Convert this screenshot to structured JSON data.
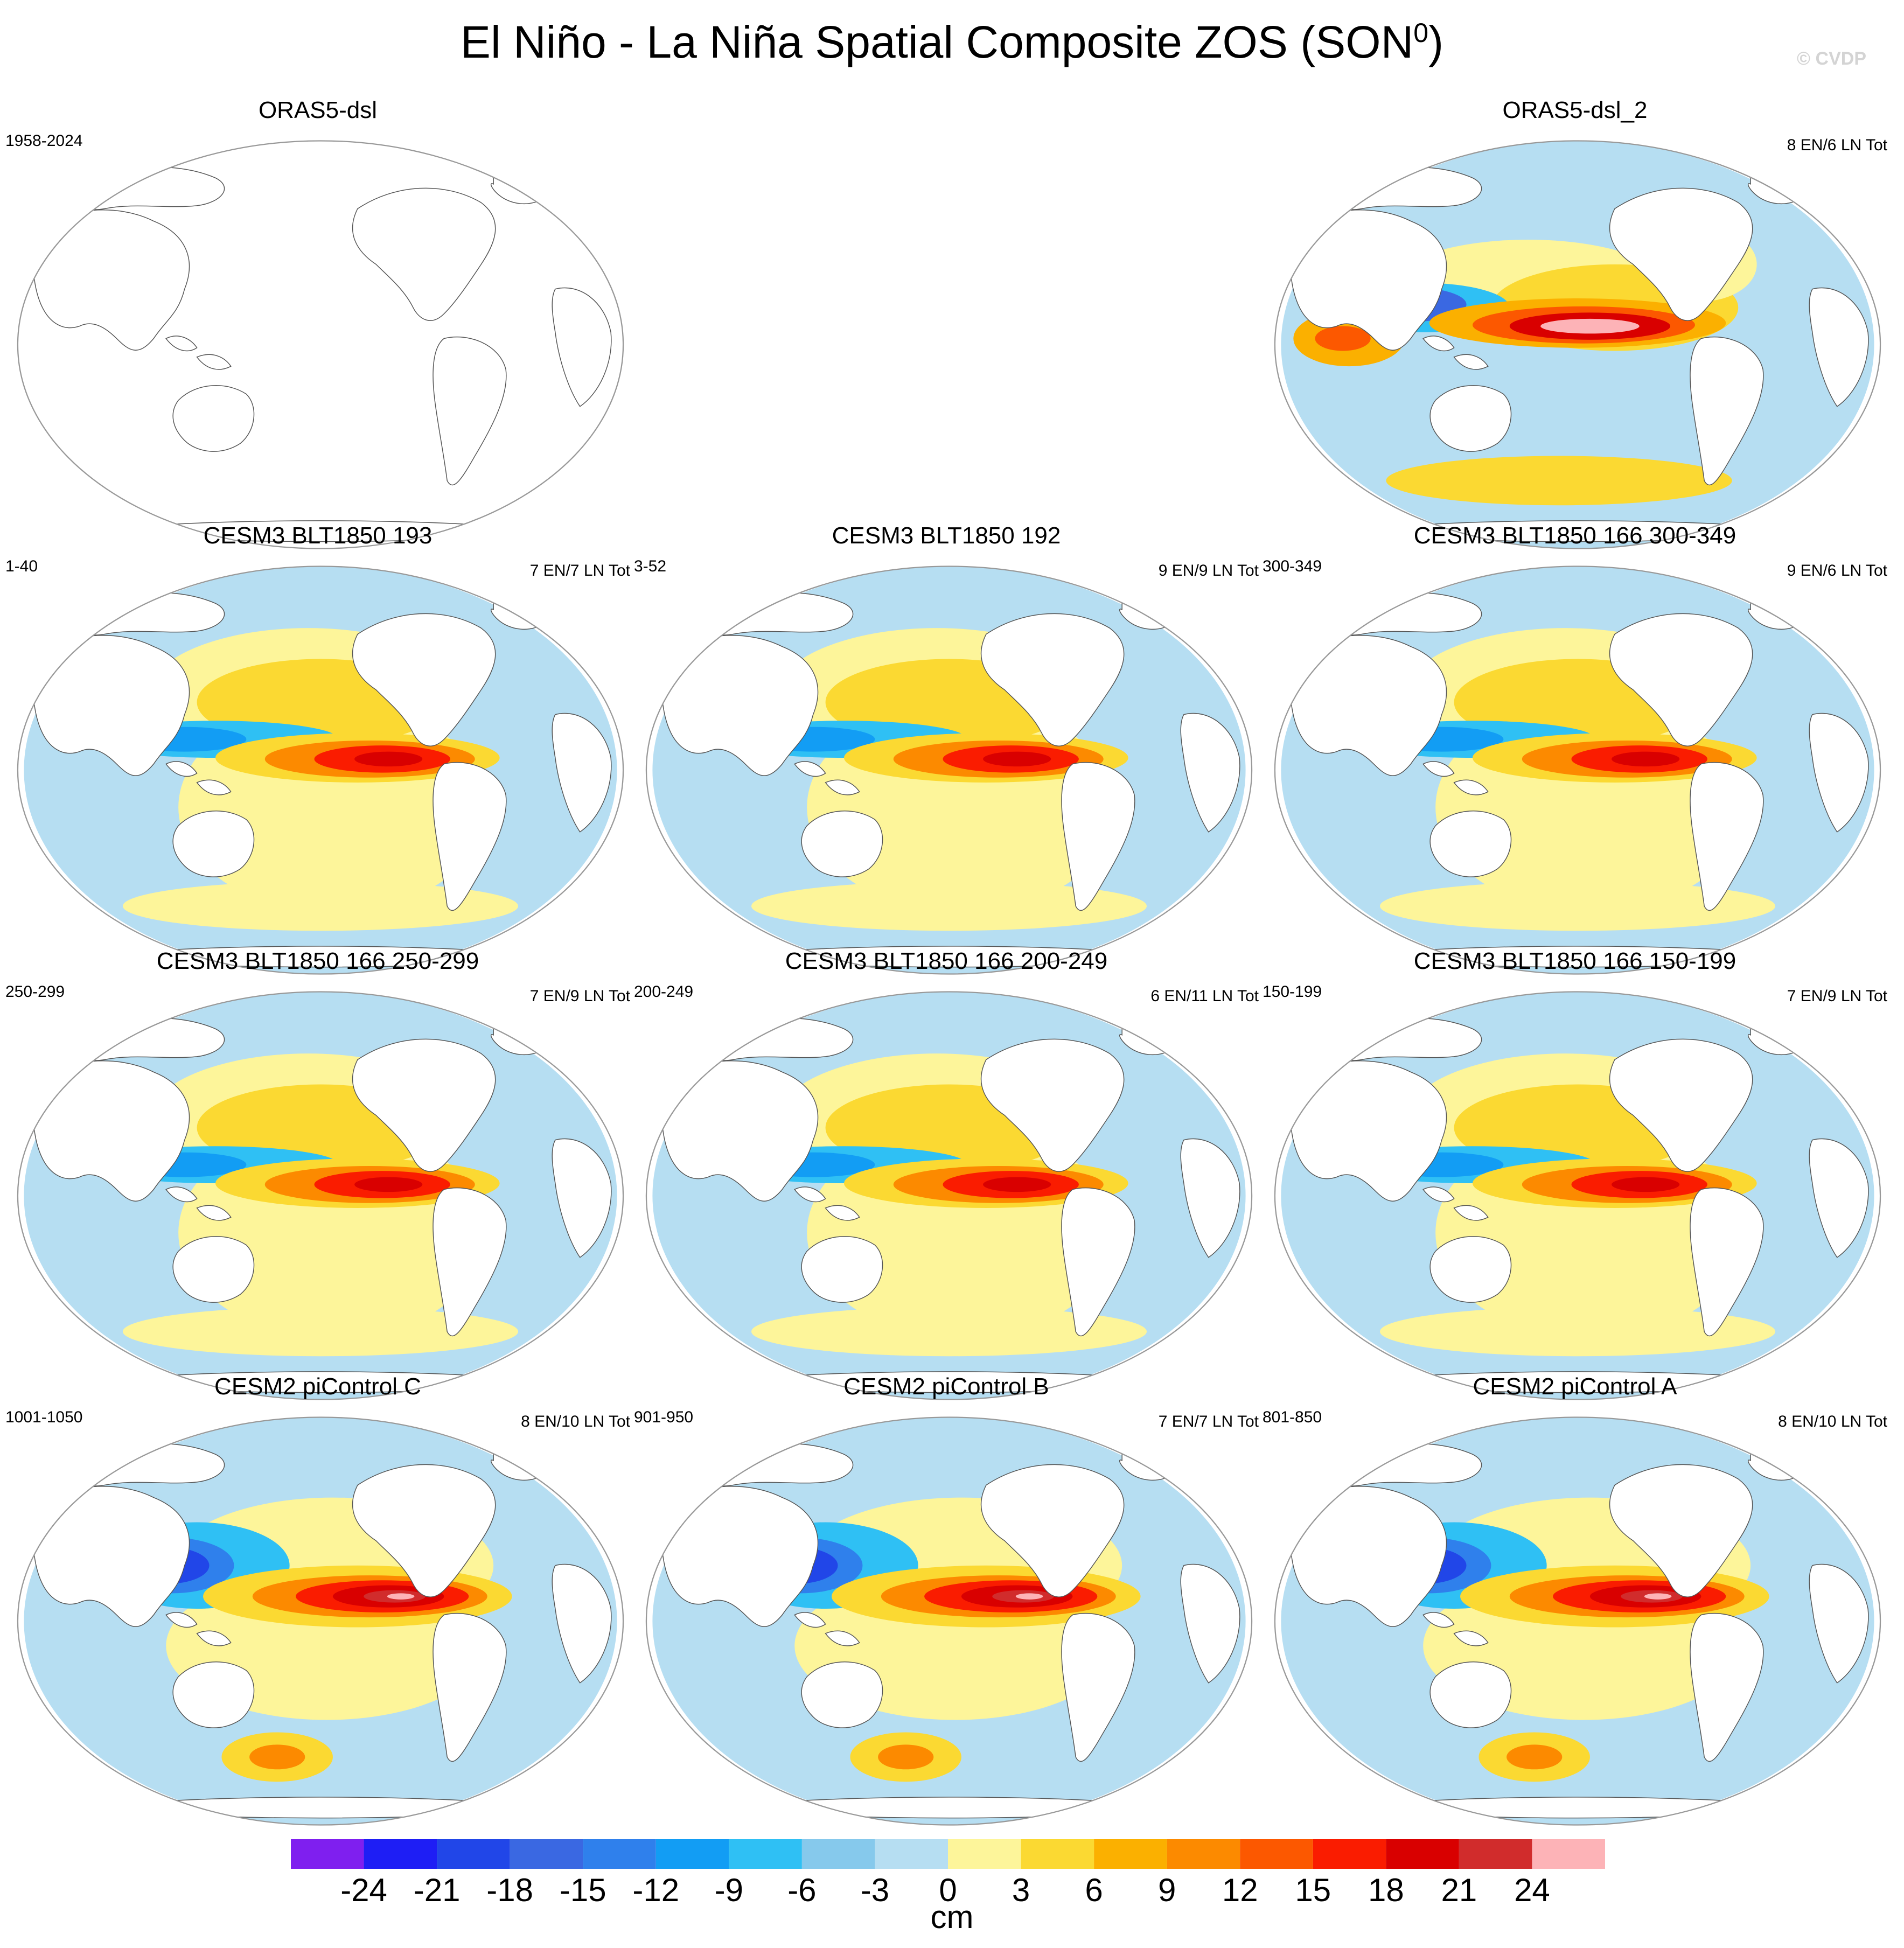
{
  "figure": {
    "title_main": "El Niño - La Niña Spatial Composite ZOS (SON",
    "title_sup": "0",
    "title_end": ")",
    "copyright": "© CVDP"
  },
  "panels": [
    {
      "id": "p0",
      "title": "ORAS5-dsl",
      "left_note": "1958-2024",
      "right_note": "",
      "empty": true
    },
    {
      "id": "p1",
      "title": "ORAS5-dsl_2",
      "left_note": "",
      "right_note": "8 EN/6 LN Tot",
      "empty": false,
      "pattern": "obs"
    },
    {
      "id": "p2",
      "title": "CESM3 BLT1850 193",
      "left_note": "1-40",
      "right_note": "7 EN/7 LN Tot",
      "empty": false,
      "pattern": "blt"
    },
    {
      "id": "p3",
      "title": "CESM3 BLT1850 192",
      "left_note": "3-52",
      "right_note": "9 EN/9 LN Tot",
      "empty": false,
      "pattern": "blt"
    },
    {
      "id": "p4",
      "title": "CESM3 BLT1850 166 300-349",
      "left_note": "300-349",
      "right_note": "9 EN/6 LN Tot",
      "empty": false,
      "pattern": "blt"
    },
    {
      "id": "p5",
      "title": "CESM3 BLT1850 166 250-299",
      "left_note": "250-299",
      "right_note": "7 EN/9 LN Tot",
      "empty": false,
      "pattern": "blt"
    },
    {
      "id": "p6",
      "title": "CESM3 BLT1850 166 200-249",
      "left_note": "200-249",
      "right_note": "6 EN/11 LN Tot",
      "empty": false,
      "pattern": "blt"
    },
    {
      "id": "p7",
      "title": "CESM3 BLT1850 166 150-199",
      "left_note": "150-199",
      "right_note": "7 EN/9 LN Tot",
      "empty": false,
      "pattern": "blt"
    },
    {
      "id": "p8",
      "title": "CESM2 piControl C",
      "left_note": "1001-1050",
      "right_note": "8 EN/10 LN Tot",
      "empty": false,
      "pattern": "cesm2"
    },
    {
      "id": "p9",
      "title": "CESM2 piControl B",
      "left_note": "901-950",
      "right_note": "7 EN/7 LN Tot",
      "empty": false,
      "pattern": "cesm2"
    },
    {
      "id": "p10",
      "title": "CESM2 piControl A",
      "left_note": "801-850",
      "right_note": "8 EN/10 LN Tot",
      "empty": false,
      "pattern": "cesm2"
    }
  ],
  "colorbar": {
    "units": "cm",
    "labels": [
      "-24",
      "-21",
      "-18",
      "-15",
      "-12",
      "-9",
      "-6",
      "-3",
      "0",
      "3",
      "6",
      "9",
      "12",
      "15",
      "18",
      "21",
      "24"
    ],
    "colors": [
      "#7f1fef",
      "#1e1ef5",
      "#2146e8",
      "#3a68e2",
      "#2f80ec",
      "#129df4",
      "#2fc0f4",
      "#86c9ec",
      "#b6def2",
      "#fdf59a",
      "#fbd932",
      "#fbb000",
      "#fc8a00",
      "#fc5800",
      "#fa1c00",
      "#d90000",
      "#d12c2c",
      "#fdb3b7"
    ]
  }
}
